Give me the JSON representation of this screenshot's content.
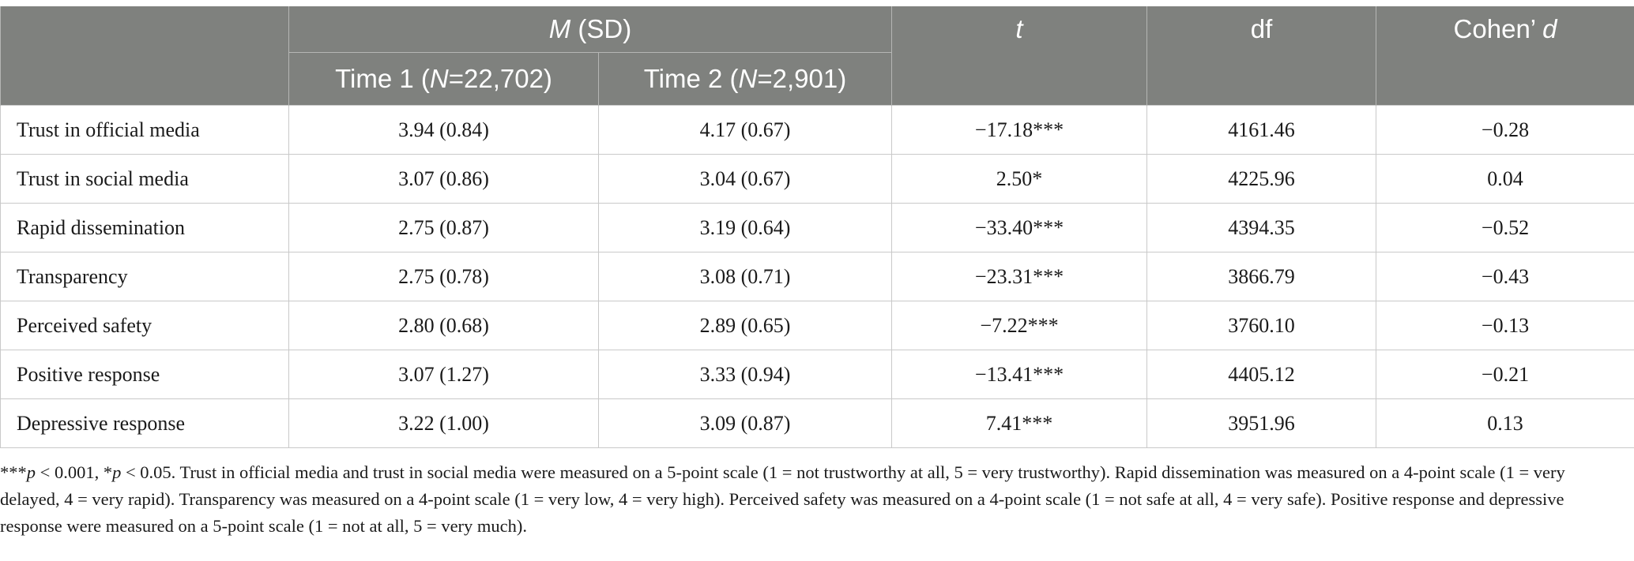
{
  "header": {
    "msd_italic": "M",
    "msd_rest": " (SD)",
    "time1_pre": "Time 1 (",
    "time1_italic": "N",
    "time1_post": "=22,702)",
    "time2_pre": "Time 2 (",
    "time2_italic": "N",
    "time2_post": "=2,901)",
    "t": "t",
    "df": "df",
    "cohen_pre": "Cohen’ ",
    "cohen_italic": "d"
  },
  "rows": [
    {
      "label": "Trust in official media",
      "time1": "3.94 (0.84)",
      "time2": "4.17 (0.67)",
      "t": "−17.18***",
      "df": "4161.46",
      "d": "−0.28"
    },
    {
      "label": "Trust in social media",
      "time1": "3.07 (0.86)",
      "time2": "3.04 (0.67)",
      "t": "2.50*",
      "df": "4225.96",
      "d": "0.04"
    },
    {
      "label": "Rapid dissemination",
      "time1": "2.75 (0.87)",
      "time2": "3.19 (0.64)",
      "t": "−33.40***",
      "df": "4394.35",
      "d": "−0.52"
    },
    {
      "label": "Transparency",
      "time1": "2.75 (0.78)",
      "time2": "3.08 (0.71)",
      "t": "−23.31***",
      "df": "3866.79",
      "d": "−0.43"
    },
    {
      "label": "Perceived safety",
      "time1": "2.80 (0.68)",
      "time2": "2.89 (0.65)",
      "t": "−7.22***",
      "df": "3760.10",
      "d": "−0.13"
    },
    {
      "label": "Positive response",
      "time1": "3.07 (1.27)",
      "time2": "3.33 (0.94)",
      "t": "−13.41***",
      "df": "4405.12",
      "d": "−0.21"
    },
    {
      "label": "Depressive response",
      "time1": "3.22 (1.00)",
      "time2": "3.09 (0.87)",
      "t": "7.41***",
      "df": "3951.96",
      "d": "0.13"
    }
  ],
  "note": {
    "stars3": "***",
    "p1": "p",
    "lt1": " < 0.001, *",
    "p2": "p",
    "body": " < 0.05. Trust in official media and trust in social media were measured on a 5-point scale (1 = not trustworthy at all, 5 = very trustworthy). Rapid dissemination was measured on a 4-point scale (1 = very delayed, 4 = very rapid). Transparency was measured on a 4-point scale (1 = very low, 4 = very high). Perceived safety was measured on a 4-point scale (1 = not safe at all, 4 = very safe). Positive response and depressive response were measured on a 5-point scale (1 = not at all, 5 = very much)."
  }
}
